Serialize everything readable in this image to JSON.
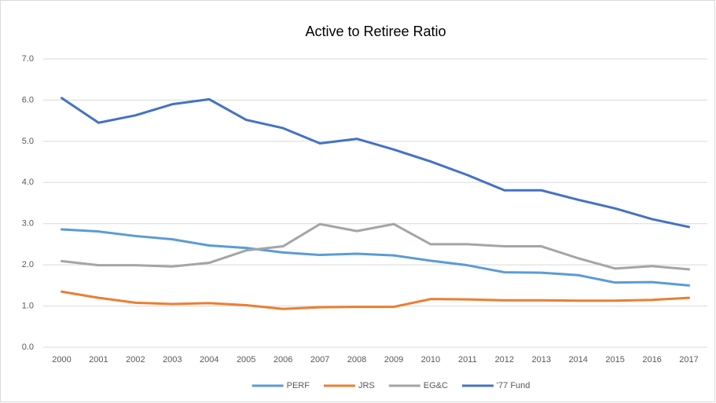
{
  "chart_data": {
    "type": "line",
    "title": "Active to Retiree Ratio",
    "categories": [
      "2000",
      "2001",
      "2002",
      "2003",
      "2004",
      "2005",
      "2006",
      "2007",
      "2008",
      "2009",
      "2010",
      "2011",
      "2012",
      "2013",
      "2014",
      "2015",
      "2016",
      "2017"
    ],
    "series": [
      {
        "name": "PERF",
        "color": "#5b9bd5",
        "values": [
          2.86,
          2.81,
          2.7,
          2.62,
          2.47,
          2.41,
          2.3,
          2.24,
          2.27,
          2.23,
          2.1,
          1.99,
          1.82,
          1.81,
          1.75,
          1.57,
          1.58,
          1.5
        ]
      },
      {
        "name": "JRS",
        "color": "#ed7d31",
        "values": [
          1.35,
          1.2,
          1.08,
          1.05,
          1.07,
          1.02,
          0.93,
          0.97,
          0.98,
          0.98,
          1.17,
          1.16,
          1.14,
          1.14,
          1.13,
          1.13,
          1.15,
          1.2
        ]
      },
      {
        "name": "EG&C",
        "color": "#a5a5a5",
        "values": [
          2.09,
          1.99,
          1.99,
          1.96,
          2.05,
          2.35,
          2.45,
          2.99,
          2.82,
          2.99,
          2.5,
          2.5,
          2.45,
          2.45,
          2.16,
          1.91,
          1.97,
          1.89
        ]
      },
      {
        "name": "'77 Fund",
        "color": "#4472c4",
        "values": [
          6.05,
          5.45,
          5.63,
          5.9,
          6.02,
          5.52,
          5.32,
          4.95,
          5.06,
          4.8,
          4.51,
          4.18,
          3.81,
          3.81,
          3.58,
          3.37,
          3.11,
          2.92
        ]
      }
    ],
    "ylim": [
      0,
      7
    ],
    "yticks": [
      {
        "value": 0,
        "label": "0.0"
      },
      {
        "value": 1,
        "label": "1.0"
      },
      {
        "value": 2,
        "label": "2.0"
      },
      {
        "value": 3,
        "label": "3.0"
      },
      {
        "value": 4,
        "label": "4.0"
      },
      {
        "value": 5,
        "label": "5.0"
      },
      {
        "value": 6,
        "label": "6.0"
      },
      {
        "value": 7,
        "label": "7.0"
      }
    ],
    "grid": true,
    "legend": "bottom"
  }
}
